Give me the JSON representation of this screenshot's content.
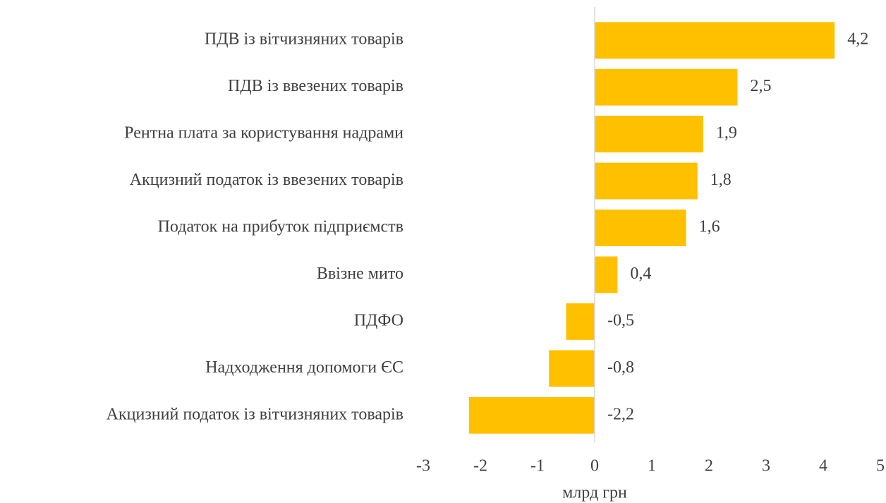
{
  "chart_data": {
    "type": "bar",
    "categories": [
      "ПДВ із вітчизняних товарів",
      "ПДВ із ввезених товарів",
      "Рентна плата за користування надрами",
      "Акцизний податок із ввезених товарів",
      "Податок на прибуток підприємств",
      "Ввізне мито",
      "ПДФО",
      "Надходження допомоги ЄС",
      "Акцизний податок із вітчизняних товарів"
    ],
    "values": [
      4.2,
      2.5,
      1.9,
      1.8,
      1.6,
      0.4,
      -0.5,
      -0.8,
      -2.2
    ],
    "value_labels": [
      "4,2",
      "2,5",
      "1,9",
      "1,8",
      "1,6",
      "0,4",
      "-0,5",
      "-0,8",
      "-2,2"
    ],
    "color": "#ffc000",
    "xlim": [
      -3,
      5
    ],
    "xticks": [
      -3,
      -2,
      -1,
      0,
      1,
      2,
      3,
      4,
      5
    ],
    "x_label": "млрд грн",
    "grid": false
  }
}
